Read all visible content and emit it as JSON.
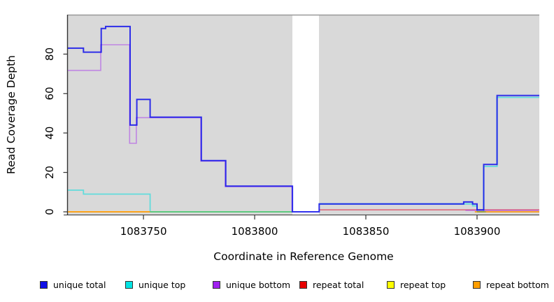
{
  "figure": {
    "background": "#FFFFFF",
    "panel_color": "#D9D9D9",
    "panel_border_color": "#999999",
    "axis_color": "#333333"
  },
  "chart_data": {
    "type": "line",
    "subtype": "step-after",
    "title": "",
    "xlabel": "Coordinate in Reference Genome",
    "ylabel": "Read Coverage Depth",
    "xlim": [
      1083716,
      1083928
    ],
    "ylim": [
      0,
      101
    ],
    "x_ticks": [
      1083750,
      1083800,
      1083850,
      1083900
    ],
    "y_ticks": [
      0,
      20,
      40,
      60,
      80
    ],
    "grid": false,
    "legend_position": "bottom",
    "no_data_region": [
      1083817,
      1083829
    ],
    "series": [
      {
        "id": "repeat-top",
        "label": "repeat top",
        "line_color": "rgba(255,255,0,0.7)",
        "width": 1.6,
        "points": [
          [
            1083716,
            0
          ],
          [
            1083817,
            0
          ]
        ]
      },
      {
        "id": "repeat-total",
        "label": "repeat total",
        "line_color": "rgba(225,30,60,0.6)",
        "width": 1.6,
        "points": [
          [
            1083829,
            1
          ],
          [
            1083928,
            1
          ]
        ]
      },
      {
        "id": "unique-top",
        "label": "unique top",
        "line_color": "rgba(0,222,222,0.55)",
        "width": 1.8,
        "points": [
          [
            1083716,
            11
          ],
          [
            1083723,
            9
          ],
          [
            1083753,
            0
          ],
          [
            1083817,
            0
          ],
          null,
          [
            1083829,
            4
          ],
          [
            1083894,
            4
          ],
          [
            1083898,
            3
          ],
          [
            1083900,
            0
          ],
          [
            1083903,
            23
          ],
          [
            1083909,
            58
          ],
          [
            1083928,
            58
          ]
        ]
      },
      {
        "id": "repeat-bottom",
        "label": "repeat bottom",
        "line_color": "rgba(255,150,10,0.95)",
        "width": 1.8,
        "points": [
          [
            1083716,
            0
          ],
          [
            1083753,
            0
          ],
          null,
          [
            1083899,
            0
          ],
          [
            1083928,
            0
          ]
        ]
      },
      {
        "id": "zero-overlap-green",
        "label": "",
        "line_color": "rgba(45,160,70,0.5)",
        "width": 1.6,
        "points": [
          [
            1083753,
            0
          ],
          [
            1083817,
            0
          ],
          null,
          [
            1083900,
            0
          ],
          [
            1083904,
            0
          ]
        ]
      },
      {
        "id": "unique-bottom",
        "label": "unique bottom",
        "line_color": "rgba(160,32,240,0.45)",
        "width": 1.6,
        "offset": [
          -0.7,
          0.7
        ],
        "points": [
          [
            1083716,
            72
          ],
          [
            1083731,
            85
          ],
          [
            1083744,
            35
          ],
          [
            1083747,
            48
          ],
          [
            1083776,
            26
          ],
          [
            1083787,
            13
          ],
          [
            1083817,
            0
          ],
          null,
          [
            1083895,
            1
          ],
          [
            1083928,
            1
          ]
        ]
      },
      {
        "id": "unique-total",
        "label": "unique total",
        "line_color": "rgba(15,15,235,0.85)",
        "width": 2,
        "points": [
          [
            1083716,
            83
          ],
          [
            1083723,
            81
          ],
          [
            1083731,
            93
          ],
          [
            1083733,
            94
          ],
          [
            1083744,
            44
          ],
          [
            1083747,
            57
          ],
          [
            1083753,
            48
          ],
          [
            1083776,
            26
          ],
          [
            1083787,
            13
          ],
          [
            1083817,
            0
          ],
          [
            1083829,
            4
          ],
          [
            1083894,
            5
          ],
          [
            1083898,
            4
          ],
          [
            1083900,
            1
          ],
          [
            1083903,
            24
          ],
          [
            1083909,
            59
          ],
          [
            1083928,
            59
          ]
        ]
      }
    ]
  },
  "legend": {
    "items": [
      {
        "label": "unique total",
        "color": "#0F0FE6"
      },
      {
        "label": "unique top",
        "color": "#00E3E3"
      },
      {
        "label": "unique bottom",
        "color": "#A020F0"
      },
      {
        "label": "repeat total",
        "color": "#E60000"
      },
      {
        "label": "repeat top",
        "color": "#FFFF00"
      },
      {
        "label": "repeat bottom",
        "color": "#FF9E00"
      }
    ]
  }
}
